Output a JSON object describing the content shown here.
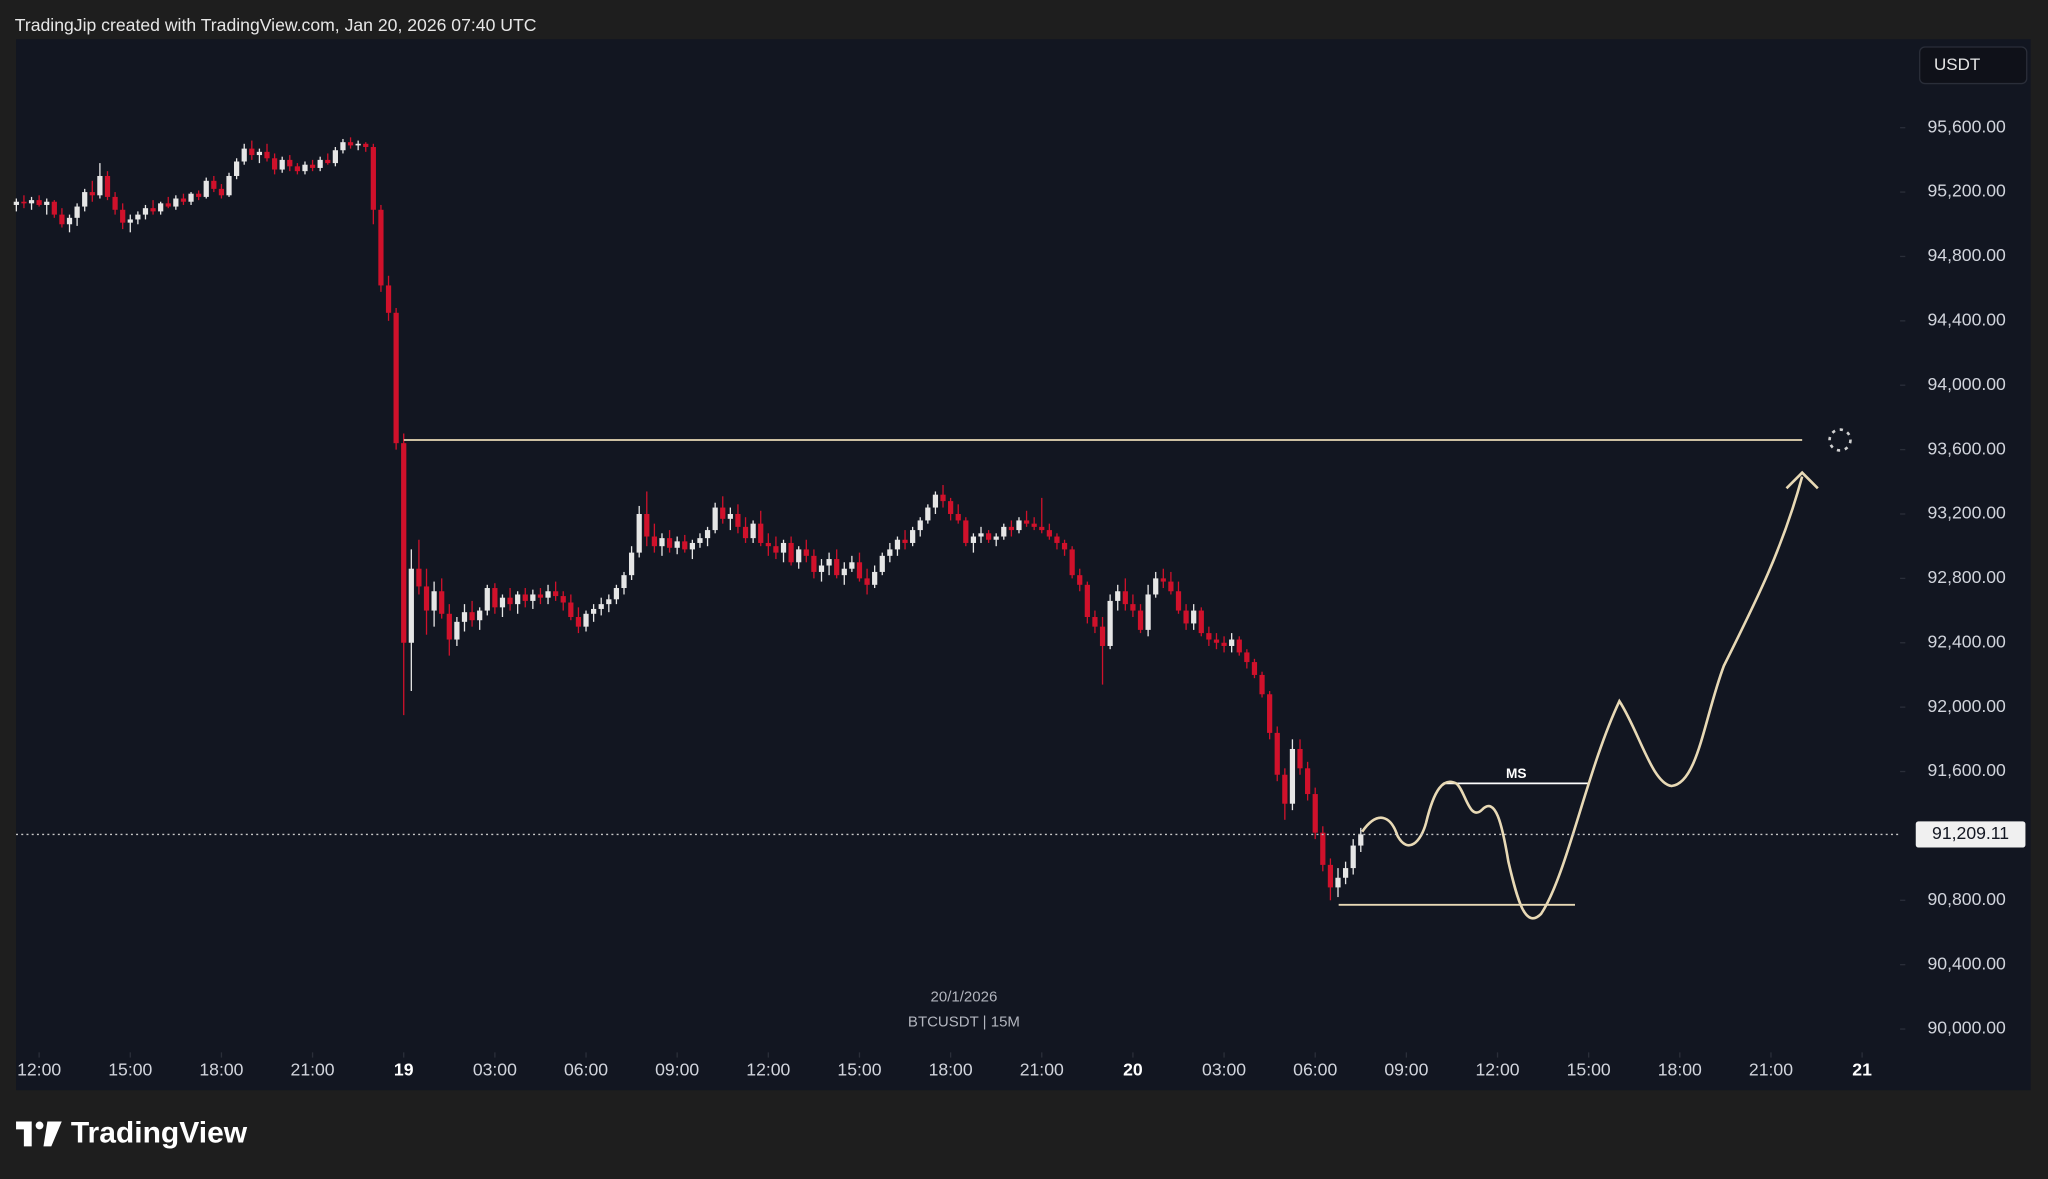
{
  "chart_data": {
    "type": "candlestick",
    "header": "TradingJip created with TradingView.com, Jan 20, 2026 07:40 UTC",
    "currency": "USDT",
    "date_label": "20/1/2026",
    "symbol_label": "BTCUSDT | 15M",
    "logo": "TradingView",
    "annotation": "MS",
    "up_color": "#e6e6e6",
    "down_color": "#d0112b",
    "last_price": {
      "value": 91209.11,
      "label": "91,209.11"
    },
    "ylim": [
      89620,
      96150
    ],
    "xlim": [
      11.24,
      73.25
    ],
    "yticks": [
      {
        "value": 90000,
        "label": "90,000.00"
      },
      {
        "value": 90400,
        "label": "90,400.00"
      },
      {
        "value": 90800,
        "label": "90,800.00"
      },
      {
        "value": 91600,
        "label": "91,600.00"
      },
      {
        "value": 92000,
        "label": "92,000.00"
      },
      {
        "value": 92400,
        "label": "92,400.00"
      },
      {
        "value": 92800,
        "label": "92,800.00"
      },
      {
        "value": 93200,
        "label": "93,200.00"
      },
      {
        "value": 93600,
        "label": "93,600.00"
      },
      {
        "value": 94000,
        "label": "94,000.00"
      },
      {
        "value": 94400,
        "label": "94,400.00"
      },
      {
        "value": 94800,
        "label": "94,800.00"
      },
      {
        "value": 95200,
        "label": "95,200.00"
      },
      {
        "value": 95600,
        "label": "95,600.00"
      }
    ],
    "xticks": [
      {
        "value": 12,
        "label": "12:00"
      },
      {
        "value": 15,
        "label": "15:00"
      },
      {
        "value": 18,
        "label": "18:00"
      },
      {
        "value": 21,
        "label": "21:00"
      },
      {
        "value": 24,
        "label": "19"
      },
      {
        "value": 27,
        "label": "03:00"
      },
      {
        "value": 30,
        "label": "06:00"
      },
      {
        "value": 33,
        "label": "09:00"
      },
      {
        "value": 36,
        "label": "12:00"
      },
      {
        "value": 39,
        "label": "15:00"
      },
      {
        "value": 42,
        "label": "18:00"
      },
      {
        "value": 45,
        "label": "21:00"
      },
      {
        "value": 48,
        "label": "20"
      },
      {
        "value": 51,
        "label": "03:00"
      },
      {
        "value": 54,
        "label": "06:00"
      },
      {
        "value": 57,
        "label": "09:00"
      },
      {
        "value": 60,
        "label": "12:00"
      },
      {
        "value": 63,
        "label": "15:00"
      },
      {
        "value": 66,
        "label": "18:00"
      },
      {
        "value": 69,
        "label": "21:00"
      },
      {
        "value": 72,
        "label": "21"
      }
    ],
    "candles": [
      [
        11.25,
        95120,
        95160,
        95080,
        95140
      ],
      [
        11.5,
        95140,
        95180,
        95100,
        95130
      ],
      [
        11.75,
        95130,
        95170,
        95090,
        95150
      ],
      [
        12.0,
        95150,
        95180,
        95110,
        95120
      ],
      [
        12.25,
        95120,
        95160,
        95060,
        95140
      ],
      [
        12.5,
        95140,
        95150,
        95040,
        95060
      ],
      [
        12.75,
        95060,
        95100,
        94980,
        95000
      ],
      [
        13.0,
        95000,
        95060,
        94950,
        95040
      ],
      [
        13.25,
        95040,
        95130,
        94990,
        95110
      ],
      [
        13.5,
        95110,
        95220,
        95080,
        95200
      ],
      [
        13.75,
        95200,
        95270,
        95140,
        95180
      ],
      [
        14.0,
        95180,
        95380,
        95160,
        95300
      ],
      [
        14.25,
        95300,
        95330,
        95150,
        95170
      ],
      [
        14.5,
        95170,
        95200,
        95060,
        95090
      ],
      [
        14.75,
        95090,
        95130,
        94970,
        95010
      ],
      [
        15.0,
        95010,
        95060,
        94950,
        95030
      ],
      [
        15.25,
        95030,
        95080,
        95000,
        95060
      ],
      [
        15.5,
        95060,
        95120,
        95030,
        95100
      ],
      [
        15.75,
        95100,
        95150,
        95060,
        95080
      ],
      [
        16.0,
        95080,
        95140,
        95060,
        95130
      ],
      [
        16.25,
        95130,
        95170,
        95100,
        95110
      ],
      [
        16.5,
        95110,
        95180,
        95090,
        95160
      ],
      [
        16.75,
        95160,
        95190,
        95120,
        95140
      ],
      [
        17.0,
        95140,
        95200,
        95120,
        95190
      ],
      [
        17.25,
        95190,
        95210,
        95150,
        95170
      ],
      [
        17.5,
        95170,
        95290,
        95160,
        95270
      ],
      [
        17.75,
        95270,
        95300,
        95200,
        95220
      ],
      [
        18.0,
        95220,
        95250,
        95160,
        95180
      ],
      [
        18.25,
        95180,
        95320,
        95170,
        95300
      ],
      [
        18.5,
        95300,
        95410,
        95280,
        95390
      ],
      [
        18.75,
        95390,
        95500,
        95370,
        95470
      ],
      [
        19.0,
        95470,
        95520,
        95400,
        95430
      ],
      [
        19.25,
        95430,
        95470,
        95380,
        95450
      ],
      [
        19.5,
        95450,
        95500,
        95390,
        95410
      ],
      [
        19.75,
        95410,
        95440,
        95310,
        95340
      ],
      [
        20.0,
        95340,
        95420,
        95320,
        95400
      ],
      [
        20.25,
        95400,
        95430,
        95330,
        95360
      ],
      [
        20.5,
        95360,
        95380,
        95310,
        95330
      ],
      [
        20.75,
        95330,
        95390,
        95310,
        95370
      ],
      [
        21.0,
        95370,
        95400,
        95330,
        95350
      ],
      [
        21.25,
        95350,
        95420,
        95330,
        95400
      ],
      [
        21.5,
        95400,
        95440,
        95370,
        95380
      ],
      [
        21.75,
        95380,
        95480,
        95360,
        95460
      ],
      [
        22.0,
        95460,
        95530,
        95440,
        95510
      ],
      [
        22.25,
        95510,
        95540,
        95470,
        95490
      ],
      [
        22.5,
        95490,
        95520,
        95460,
        95500
      ],
      [
        22.75,
        95500,
        95510,
        95450,
        95480
      ],
      [
        23.0,
        95480,
        95500,
        95000,
        95090
      ],
      [
        23.25,
        95090,
        95120,
        94580,
        94620
      ],
      [
        23.5,
        94620,
        94680,
        94400,
        94450
      ],
      [
        23.75,
        94450,
        94480,
        93600,
        93640
      ],
      [
        24.0,
        93640,
        93700,
        91950,
        92400
      ],
      [
        24.25,
        92400,
        92980,
        92100,
        92860
      ],
      [
        24.5,
        92860,
        93040,
        92700,
        92750
      ],
      [
        24.75,
        92750,
        92860,
        92450,
        92600
      ],
      [
        25.0,
        92600,
        92780,
        92500,
        92720
      ],
      [
        25.25,
        92720,
        92800,
        92550,
        92580
      ],
      [
        25.5,
        92580,
        92640,
        92320,
        92420
      ],
      [
        25.75,
        92420,
        92560,
        92380,
        92530
      ],
      [
        26.0,
        92530,
        92640,
        92470,
        92590
      ],
      [
        26.25,
        92590,
        92660,
        92500,
        92540
      ],
      [
        26.5,
        92540,
        92620,
        92480,
        92600
      ],
      [
        26.75,
        92600,
        92760,
        92570,
        92740
      ],
      [
        27.0,
        92740,
        92770,
        92580,
        92620
      ],
      [
        27.25,
        92620,
        92700,
        92560,
        92680
      ],
      [
        27.5,
        92680,
        92740,
        92600,
        92640
      ],
      [
        27.75,
        92640,
        92720,
        92580,
        92700
      ],
      [
        28.0,
        92700,
        92740,
        92620,
        92660
      ],
      [
        28.25,
        92660,
        92730,
        92610,
        92700
      ],
      [
        28.5,
        92700,
        92740,
        92640,
        92680
      ],
      [
        28.75,
        92680,
        92760,
        92640,
        92720
      ],
      [
        29.0,
        92720,
        92780,
        92660,
        92690
      ],
      [
        29.25,
        92690,
        92720,
        92600,
        92650
      ],
      [
        29.5,
        92650,
        92700,
        92540,
        92560
      ],
      [
        29.75,
        92560,
        92620,
        92460,
        92500
      ],
      [
        30.0,
        92500,
        92600,
        92470,
        92580
      ],
      [
        30.25,
        92580,
        92640,
        92530,
        92610
      ],
      [
        30.5,
        92610,
        92680,
        92570,
        92640
      ],
      [
        30.75,
        92640,
        92700,
        92590,
        92670
      ],
      [
        31.0,
        92670,
        92760,
        92640,
        92740
      ],
      [
        31.25,
        92740,
        92840,
        92700,
        92820
      ],
      [
        31.5,
        92820,
        93000,
        92790,
        92960
      ],
      [
        31.75,
        92960,
        93250,
        92930,
        93200
      ],
      [
        32.0,
        93200,
        93340,
        93000,
        93060
      ],
      [
        32.25,
        93060,
        93140,
        92960,
        93000
      ],
      [
        32.5,
        93000,
        93080,
        92940,
        93050
      ],
      [
        32.75,
        93050,
        93100,
        92960,
        92990
      ],
      [
        33.0,
        92990,
        93060,
        92950,
        93030
      ],
      [
        33.25,
        93030,
        93070,
        92960,
        92980
      ],
      [
        33.5,
        92980,
        93040,
        92920,
        93020
      ],
      [
        33.75,
        93020,
        93080,
        92990,
        93050
      ],
      [
        34.0,
        93050,
        93120,
        93000,
        93100
      ],
      [
        34.25,
        93100,
        93270,
        93080,
        93240
      ],
      [
        34.5,
        93240,
        93310,
        93140,
        93170
      ],
      [
        34.75,
        93170,
        93240,
        93100,
        93200
      ],
      [
        35.0,
        93200,
        93260,
        93080,
        93120
      ],
      [
        35.25,
        93120,
        93180,
        93020,
        93050
      ],
      [
        35.5,
        93050,
        93160,
        93020,
        93140
      ],
      [
        35.75,
        93140,
        93220,
        93000,
        93020
      ],
      [
        36.0,
        93020,
        93080,
        92940,
        93000
      ],
      [
        36.25,
        93000,
        93060,
        92920,
        92960
      ],
      [
        36.5,
        92960,
        93040,
        92900,
        93020
      ],
      [
        36.75,
        93020,
        93060,
        92880,
        92900
      ],
      [
        37.0,
        92900,
        93000,
        92860,
        92980
      ],
      [
        37.25,
        92980,
        93040,
        92900,
        92940
      ],
      [
        37.5,
        92940,
        92980,
        92800,
        92840
      ],
      [
        37.75,
        92840,
        92920,
        92780,
        92880
      ],
      [
        38.0,
        92880,
        92960,
        92820,
        92920
      ],
      [
        38.25,
        92920,
        92980,
        92800,
        92820
      ],
      [
        38.5,
        92820,
        92900,
        92760,
        92860
      ],
      [
        38.75,
        92860,
        92940,
        92840,
        92900
      ],
      [
        39.0,
        92900,
        92960,
        92780,
        92800
      ],
      [
        39.25,
        92800,
        92860,
        92700,
        92760
      ],
      [
        39.5,
        92760,
        92880,
        92740,
        92840
      ],
      [
        39.75,
        92840,
        92960,
        92820,
        92940
      ],
      [
        40.0,
        92940,
        93020,
        92900,
        92980
      ],
      [
        40.25,
        92980,
        93060,
        92940,
        93040
      ],
      [
        40.5,
        93040,
        93100,
        92980,
        93020
      ],
      [
        40.75,
        93020,
        93120,
        93000,
        93100
      ],
      [
        41.0,
        93100,
        93180,
        93060,
        93160
      ],
      [
        41.25,
        93160,
        93260,
        93140,
        93240
      ],
      [
        41.5,
        93240,
        93340,
        93200,
        93320
      ],
      [
        41.75,
        93320,
        93380,
        93240,
        93280
      ],
      [
        42.0,
        93280,
        93300,
        93160,
        93200
      ],
      [
        42.25,
        93200,
        93260,
        93140,
        93160
      ],
      [
        42.5,
        93160,
        93180,
        93000,
        93020
      ],
      [
        42.75,
        93020,
        93080,
        92960,
        93060
      ],
      [
        43.0,
        93060,
        93120,
        93020,
        93080
      ],
      [
        43.25,
        93080,
        93100,
        93020,
        93040
      ],
      [
        43.5,
        93040,
        93080,
        93000,
        93060
      ],
      [
        43.75,
        93060,
        93140,
        93040,
        93120
      ],
      [
        44.0,
        93120,
        93160,
        93060,
        93100
      ],
      [
        44.25,
        93100,
        93180,
        93080,
        93160
      ],
      [
        44.5,
        93160,
        93220,
        93120,
        93140
      ],
      [
        44.75,
        93140,
        93180,
        93100,
        93120
      ],
      [
        45.0,
        93120,
        93300,
        93080,
        93100
      ],
      [
        45.25,
        93100,
        93140,
        93040,
        93060
      ],
      [
        45.5,
        93060,
        93080,
        92980,
        93020
      ],
      [
        45.75,
        93020,
        93040,
        92940,
        92980
      ],
      [
        46.0,
        92980,
        93000,
        92800,
        92820
      ],
      [
        46.25,
        92820,
        92860,
        92720,
        92760
      ],
      [
        46.5,
        92760,
        92780,
        92520,
        92560
      ],
      [
        46.75,
        92560,
        92600,
        92460,
        92500
      ],
      [
        47.0,
        92500,
        92560,
        92140,
        92380
      ],
      [
        47.25,
        92380,
        92700,
        92360,
        92660
      ],
      [
        47.5,
        92660,
        92760,
        92600,
        92720
      ],
      [
        47.75,
        92720,
        92800,
        92600,
        92640
      ],
      [
        48.0,
        92640,
        92700,
        92560,
        92600
      ],
      [
        48.25,
        92600,
        92640,
        92460,
        92480
      ],
      [
        48.5,
        92480,
        92760,
        92440,
        92700
      ],
      [
        48.75,
        92700,
        92840,
        92680,
        92800
      ],
      [
        49.0,
        92800,
        92860,
        92740,
        92780
      ],
      [
        49.25,
        92780,
        92840,
        92700,
        92720
      ],
      [
        49.5,
        92720,
        92780,
        92580,
        92600
      ],
      [
        49.75,
        92600,
        92640,
        92480,
        92520
      ],
      [
        50.0,
        92520,
        92640,
        92480,
        92600
      ],
      [
        50.25,
        92600,
        92620,
        92440,
        92460
      ],
      [
        50.5,
        92460,
        92500,
        92380,
        92420
      ],
      [
        50.75,
        92420,
        92460,
        92360,
        92400
      ],
      [
        51.0,
        92400,
        92440,
        92340,
        92380
      ],
      [
        51.25,
        92380,
        92460,
        92340,
        92420
      ],
      [
        51.5,
        92420,
        92440,
        92320,
        92340
      ],
      [
        51.75,
        92340,
        92360,
        92240,
        92280
      ],
      [
        52.0,
        92280,
        92300,
        92180,
        92200
      ],
      [
        52.25,
        92200,
        92220,
        92060,
        92080
      ],
      [
        52.5,
        92080,
        92100,
        91800,
        91840
      ],
      [
        52.75,
        91840,
        91880,
        91540,
        91580
      ],
      [
        53.0,
        91580,
        91620,
        91300,
        91400
      ],
      [
        53.25,
        91400,
        91800,
        91360,
        91740
      ],
      [
        53.5,
        91740,
        91800,
        91580,
        91620
      ],
      [
        53.75,
        91620,
        91660,
        91420,
        91460
      ],
      [
        54.0,
        91460,
        91500,
        91180,
        91220
      ],
      [
        54.25,
        91220,
        91260,
        90980,
        91020
      ],
      [
        54.5,
        91020,
        91060,
        90800,
        90880
      ],
      [
        54.75,
        90880,
        91000,
        90820,
        90940
      ],
      [
        55.0,
        90940,
        91040,
        90900,
        91000
      ],
      [
        55.25,
        91000,
        91180,
        90960,
        91140
      ],
      [
        55.5,
        91140,
        91250,
        91100,
        91209.11
      ]
    ]
  }
}
